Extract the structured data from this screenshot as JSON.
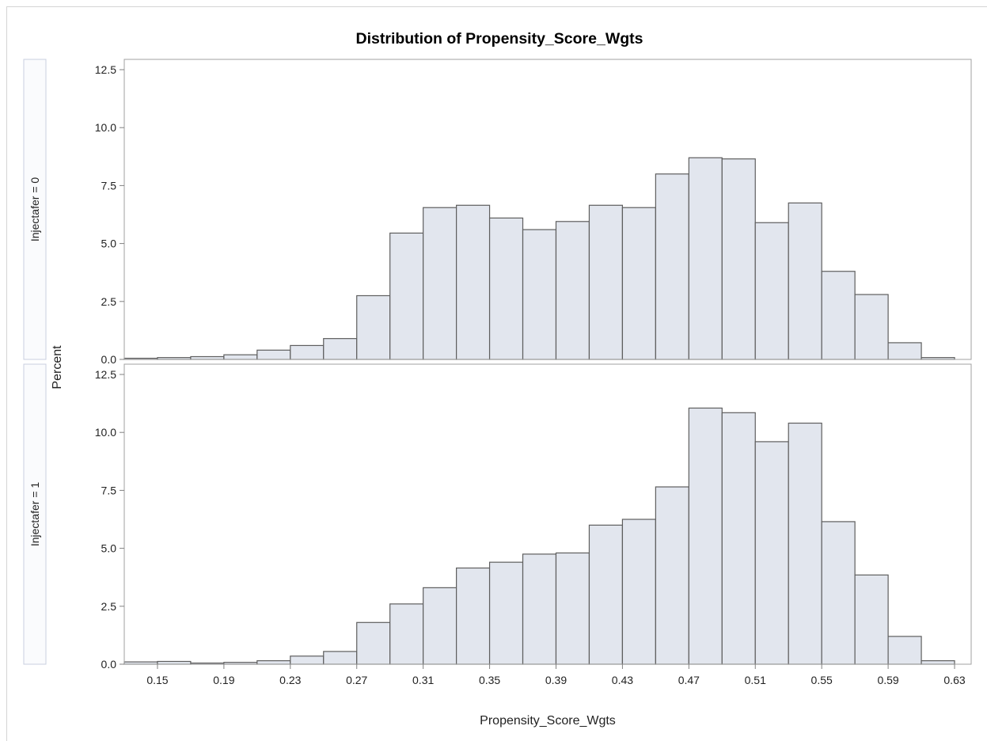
{
  "chart_data": {
    "type": "bar",
    "title": "Distribution of Propensity_Score_Wgts",
    "xlabel": "Propensity_Score_Wgts",
    "ylabel": "Percent",
    "bin_start": 0.13,
    "bin_width": 0.02,
    "xlim": [
      0.13,
      0.64
    ],
    "ylim": [
      0,
      12.5
    ],
    "x_ticks": [
      "0.15",
      "0.19",
      "0.23",
      "0.27",
      "0.31",
      "0.35",
      "0.39",
      "0.43",
      "0.47",
      "0.51",
      "0.55",
      "0.59",
      "0.63"
    ],
    "y_ticks": [
      "0.0",
      "2.5",
      "5.0",
      "7.5",
      "10.0",
      "12.5"
    ],
    "bar_fill": "#e2e6ee",
    "bar_stroke": "#5e5e5e",
    "panels": [
      {
        "label": "Injectafer = 0",
        "values": [
          0.05,
          0.08,
          0.12,
          0.2,
          0.4,
          0.6,
          0.9,
          2.75,
          5.45,
          6.55,
          6.65,
          6.1,
          5.6,
          5.95,
          6.65,
          6.55,
          8.0,
          8.7,
          8.65,
          5.9,
          6.75,
          3.8,
          2.8,
          0.72,
          0.08
        ]
      },
      {
        "label": "Injectafer = 1",
        "values": [
          0.1,
          0.12,
          0.05,
          0.08,
          0.15,
          0.35,
          0.55,
          1.8,
          2.6,
          3.3,
          4.15,
          4.4,
          4.75,
          4.8,
          6.0,
          6.25,
          7.65,
          11.05,
          10.85,
          9.6,
          10.4,
          6.15,
          3.85,
          1.2,
          0.15
        ]
      }
    ]
  }
}
